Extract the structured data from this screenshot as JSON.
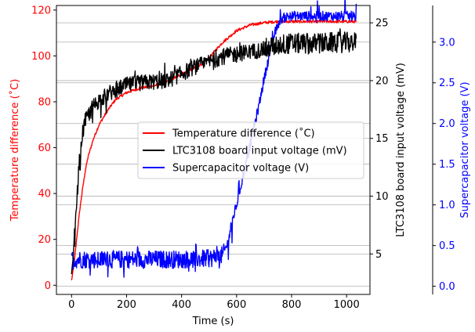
{
  "chart_data": {
    "type": "line",
    "xlabel": "Time (s)",
    "xlim": [
      -55,
      1085
    ],
    "xticks": [
      0,
      200,
      400,
      600,
      800,
      1000
    ],
    "grid": "horizontal",
    "legend_position": "center-right",
    "axes": [
      {
        "id": "temp",
        "label": "Temperature difference ($^\\circ$C)",
        "label_display": "Temperature difference (˚C)",
        "side": "left",
        "color": "#ff0000",
        "ylim": [
          -4,
          122
        ],
        "ticks": [
          0,
          20,
          40,
          60,
          80,
          100,
          120
        ]
      },
      {
        "id": "volt",
        "label": "LTC3108 board input voltage (mV)",
        "side": "right",
        "color": "#000000",
        "ylim": [
          1.5,
          26.5
        ],
        "ticks": [
          5,
          10,
          15,
          20,
          25
        ]
      },
      {
        "id": "cap",
        "label": "Supercapacitor voltage (V)",
        "side": "right-offset",
        "color": "#0000ff",
        "ylim": [
          -0.1,
          3.45
        ],
        "ticks": [
          0.0,
          0.5,
          1.0,
          1.5,
          2.0,
          2.5,
          3.0
        ]
      }
    ],
    "series": [
      {
        "name": "Temperature difference (˚C)",
        "axis": "temp",
        "color": "#ff0000",
        "x": [
          0,
          10,
          20,
          30,
          40,
          50,
          60,
          80,
          100,
          130,
          160,
          200,
          250,
          300,
          350,
          400,
          450,
          480,
          500,
          520,
          550,
          600,
          650,
          700,
          750,
          780,
          800,
          850,
          900,
          950,
          1000,
          1035
        ],
        "y": [
          2,
          10,
          22,
          33,
          42,
          50,
          56,
          64,
          70,
          76,
          81,
          84,
          86,
          87,
          89,
          92,
          95,
          97,
          99,
          102,
          106,
          111,
          113.5,
          114.5,
          115,
          115,
          115,
          115,
          115,
          115,
          115,
          115
        ]
      },
      {
        "name": "LTC3108 board input voltage (mV)",
        "axis": "volt",
        "color": "#000000",
        "x": [
          0,
          10,
          20,
          30,
          40,
          50,
          60,
          80,
          100,
          130,
          160,
          200,
          250,
          300,
          350,
          400,
          450,
          500,
          550,
          600,
          650,
          700,
          720,
          750,
          800,
          850,
          900,
          950,
          1000,
          1035
        ],
        "y": [
          3,
          6,
          10,
          13.5,
          15.5,
          16.5,
          17,
          17.8,
          18.3,
          18.8,
          19.2,
          19.6,
          19.8,
          19.9,
          20,
          20.6,
          21.2,
          21.6,
          22.1,
          22.3,
          22.5,
          22.7,
          22.9,
          23.1,
          23.2,
          23.2,
          23.2,
          23.3,
          23.3,
          23.3
        ]
      },
      {
        "name": "Supercapacitor voltage (V)",
        "axis": "cap",
        "color": "#0000ff",
        "x": [
          0,
          20,
          100,
          200,
          300,
          400,
          500,
          550,
          570,
          580,
          600,
          620,
          640,
          660,
          680,
          700,
          720,
          740,
          760,
          780,
          800,
          900,
          1000,
          1035
        ],
        "y": [
          0.33,
          0.33,
          0.33,
          0.33,
          0.33,
          0.33,
          0.34,
          0.38,
          0.55,
          0.75,
          1.0,
          1.3,
          1.6,
          1.9,
          2.2,
          2.55,
          2.85,
          3.12,
          3.28,
          3.31,
          3.32,
          3.32,
          3.32,
          3.32
        ]
      }
    ]
  }
}
